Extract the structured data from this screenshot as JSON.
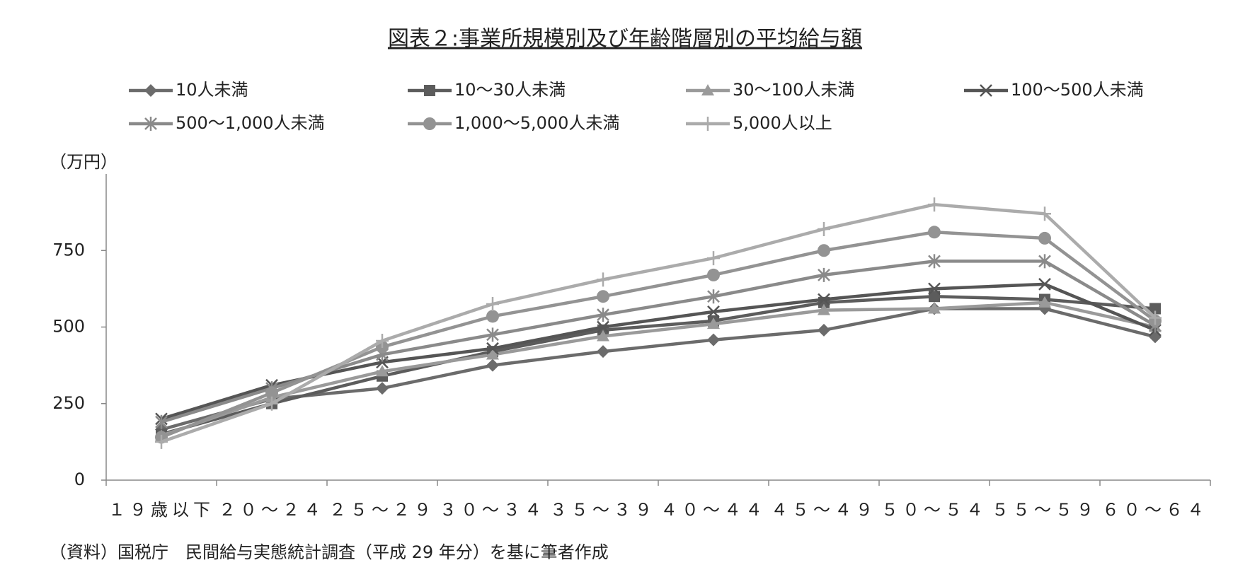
{
  "chart_data": {
    "type": "line",
    "title": "図表２:事業所規模別及び年齢階層別の平均給与額",
    "y_label": "（万円）",
    "source": "（資料）国税庁　民間給与実態統計調査（平成 29 年分）を基に筆者作成",
    "categories": [
      "１９歳以下",
      "２０～２４",
      "２５～２９",
      "３０～３４",
      "３５～３９",
      "４０～４４",
      "４５～４９",
      "５０～５４",
      "５５～５９",
      "６０～６４"
    ],
    "series": [
      {
        "name": "10人未満",
        "color": "#6b6b6b",
        "marker": "diamond",
        "values": [
          165,
          265,
          300,
          375,
          420,
          458,
          490,
          560,
          560,
          468
        ]
      },
      {
        "name": "10～30人未満",
        "color": "#5c5c5c",
        "marker": "square",
        "values": [
          150,
          250,
          340,
          420,
          490,
          520,
          580,
          600,
          590,
          560
        ]
      },
      {
        "name": "30～100人未満",
        "color": "#9a9a9a",
        "marker": "triangle",
        "values": [
          145,
          270,
          355,
          410,
          470,
          510,
          555,
          560,
          580,
          500
        ]
      },
      {
        "name": "100～500人未満",
        "color": "#555555",
        "marker": "x",
        "values": [
          200,
          310,
          385,
          430,
          500,
          550,
          590,
          625,
          640,
          490
        ]
      },
      {
        "name": "500～1,000人未満",
        "color": "#8a8a8a",
        "marker": "star",
        "values": [
          190,
          300,
          410,
          475,
          540,
          600,
          670,
          715,
          715,
          505
        ]
      },
      {
        "name": "1,000～5,000人未満",
        "color": "#939393",
        "marker": "circle",
        "values": [
          140,
          285,
          435,
          535,
          600,
          670,
          750,
          810,
          790,
          520
        ]
      },
      {
        "name": "5,000人以上",
        "color": "#ababab",
        "marker": "plus",
        "values": [
          125,
          250,
          455,
          575,
          655,
          725,
          820,
          900,
          870,
          530
        ]
      }
    ],
    "ylim": [
      0,
      1000
    ],
    "yticks": [
      0,
      250,
      500,
      750
    ],
    "grid": false
  }
}
